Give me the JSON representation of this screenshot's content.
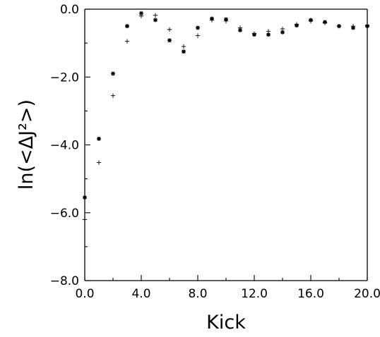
{
  "chart_data": {
    "type": "scatter",
    "title": "",
    "xlabel": "Kick",
    "ylabel": "ln(<ΔJ²>)",
    "xlim": [
      0,
      20
    ],
    "ylim": [
      -8,
      0
    ],
    "x_ticks": [
      {
        "value": 0,
        "label": "0.0"
      },
      {
        "value": 4,
        "label": "4.0"
      },
      {
        "value": 8,
        "label": "8.0"
      },
      {
        "value": 12,
        "label": "12.0"
      },
      {
        "value": 16,
        "label": "16.0"
      },
      {
        "value": 20,
        "label": "20.0"
      }
    ],
    "y_ticks": [
      {
        "value": 0,
        "label": "0.0"
      },
      {
        "value": -2,
        "label": "−2.0"
      },
      {
        "value": -4,
        "label": "−4.0"
      },
      {
        "value": -6,
        "label": "−6.0"
      },
      {
        "value": -8,
        "label": "−8.0"
      }
    ],
    "grid": false,
    "legend": "none",
    "series": [
      {
        "marker": "star",
        "x": [
          0,
          1,
          2,
          3,
          4,
          5,
          6,
          7,
          8,
          9,
          10,
          11,
          12,
          13,
          14,
          15,
          16,
          17,
          18,
          19,
          20
        ],
        "y": [
          -5.55,
          -3.82,
          -1.9,
          -0.5,
          -0.12,
          -0.32,
          -0.92,
          -1.25,
          -0.55,
          -0.28,
          -0.3,
          -0.62,
          -0.75,
          -0.75,
          -0.68,
          -0.48,
          -0.32,
          -0.38,
          -0.5,
          -0.55,
          -0.5
        ]
      },
      {
        "marker": "plus",
        "x": [
          0,
          1,
          2,
          3,
          4,
          5,
          6,
          7,
          8,
          9,
          10,
          11,
          12,
          13,
          14,
          15,
          16,
          17,
          18,
          19,
          20
        ],
        "y": [
          -6.2,
          -4.52,
          -2.55,
          -0.95,
          -0.2,
          -0.18,
          -0.6,
          -1.1,
          -0.78,
          -0.32,
          -0.35,
          -0.55,
          -0.72,
          -0.65,
          -0.58,
          -0.45,
          -0.35,
          -0.4,
          -0.5,
          -0.5,
          -0.48
        ]
      }
    ]
  }
}
